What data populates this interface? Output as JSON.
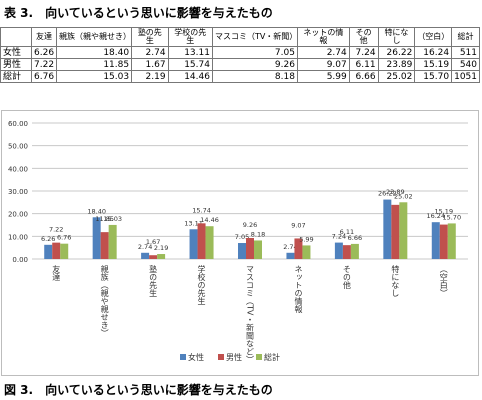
{
  "table_title": "表 3.　向いているという思いに影響を与えたもの",
  "figure_title": "図 3.　向いているという思いに影響を与えたもの",
  "table": {
    "headers": [
      "友達",
      "親族（親や親せき）",
      "塾の先生",
      "学校の先生",
      "マスコミ（TV・新聞）",
      "ネットの情報",
      "その他",
      "特になし",
      "（空白）",
      "総計"
    ],
    "rows": [
      {
        "label": "女性",
        "values": [
          "6.26",
          "18.40",
          "2.74",
          "13.11",
          "7.05",
          "2.74",
          "7.24",
          "26.22",
          "16.24",
          "511"
        ]
      },
      {
        "label": "男性",
        "values": [
          "7.22",
          "11.85",
          "1.67",
          "15.74",
          "9.26",
          "9.07",
          "6.11",
          "23.89",
          "15.19",
          "540"
        ]
      },
      {
        "label": "総計",
        "values": [
          "6.76",
          "15.03",
          "2.19",
          "14.46",
          "8.18",
          "5.99",
          "6.66",
          "25.02",
          "15.70",
          "1051"
        ]
      }
    ]
  },
  "chart_data": {
    "type": "bar",
    "categories": [
      "友達",
      "親族（親や親せき）",
      "塾の先生",
      "学校の先生",
      "マスコミ（TV・新聞など）",
      "ネットの情報",
      "その他",
      "特になし",
      "（空白）"
    ],
    "series": [
      {
        "name": "女性",
        "color": "#4f81bd",
        "values": [
          6.26,
          18.4,
          2.74,
          13.11,
          7.05,
          2.74,
          7.24,
          26.22,
          16.24
        ]
      },
      {
        "name": "男性",
        "color": "#c0504d",
        "values": [
          7.22,
          11.85,
          1.67,
          15.74,
          9.26,
          9.07,
          6.11,
          23.89,
          15.19
        ]
      },
      {
        "name": "総計",
        "color": "#9bbb59",
        "values": [
          6.76,
          15.03,
          2.19,
          14.46,
          8.18,
          5.99,
          6.66,
          25.02,
          15.7
        ]
      }
    ],
    "yticks": [
      "0.00",
      "10.00",
      "20.00",
      "30.00",
      "40.00",
      "50.00",
      "60.00"
    ],
    "ylim": [
      0,
      60
    ],
    "grid": true,
    "legend_position": "bottom"
  }
}
